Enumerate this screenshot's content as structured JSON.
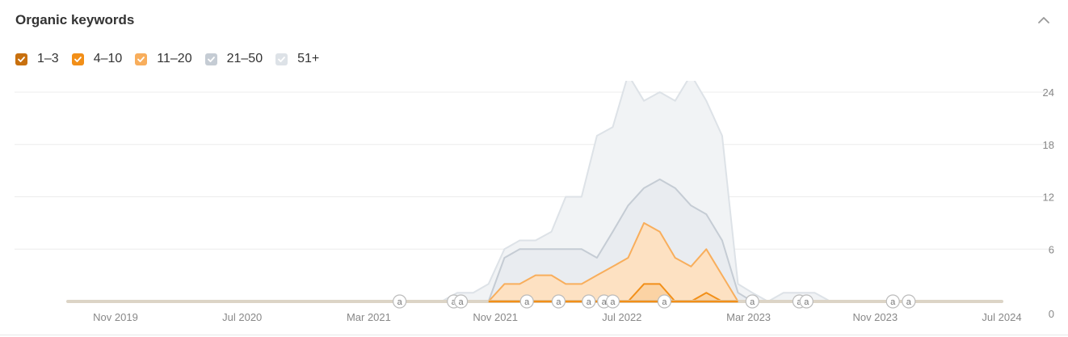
{
  "header": {
    "title": "Organic keywords",
    "collapse_icon": "chevron-up-icon"
  },
  "legend": [
    {
      "label": "1–3",
      "color": "#c8700e",
      "checked": true
    },
    {
      "label": "4–10",
      "color": "#f28f18",
      "checked": true
    },
    {
      "label": "11–20",
      "color": "#f8ae5c",
      "checked": true
    },
    {
      "label": "21–50",
      "color": "#c5ccd4",
      "checked": true
    },
    {
      "label": "51+",
      "color": "#dde2e7",
      "checked": true
    }
  ],
  "chart_data": {
    "type": "area",
    "title": "",
    "xlabel": "",
    "ylabel": "",
    "stacked": true,
    "ylim": [
      0,
      24
    ],
    "yticks": [
      0,
      6,
      12,
      18,
      24
    ],
    "y_axis_position": "right",
    "xlim": [
      "2019-07-01",
      "2024-07-01"
    ],
    "xticks": [
      "Nov 2019",
      "Jul 2020",
      "Mar 2021",
      "Nov 2021",
      "Jul 2022",
      "Mar 2023",
      "Nov 2023",
      "Jul 2024"
    ],
    "grid": true,
    "series_colors": {
      "1–3": {
        "line": "#e07b10",
        "fill": "#f5b564"
      },
      "4–10": {
        "line": "#f28f18",
        "fill": "#fbd3a4"
      },
      "11–20": {
        "line": "#f8ae5c",
        "fill": "#fde1c2"
      },
      "21–50": {
        "line": "#c5ccd4",
        "fill": "#e9ecf0"
      },
      "51+": {
        "line": "#dde2e7",
        "fill": "#f1f3f5"
      }
    },
    "x": [
      "2019-07-01",
      "2021-07-01",
      "2021-08-01",
      "2021-09-01",
      "2021-10-01",
      "2021-11-01",
      "2021-12-01",
      "2022-01-01",
      "2022-02-01",
      "2022-03-01",
      "2022-04-01",
      "2022-05-01",
      "2022-06-01",
      "2022-07-01",
      "2022-08-01",
      "2022-09-01",
      "2022-10-01",
      "2022-11-01",
      "2022-12-01",
      "2023-01-01",
      "2023-02-01",
      "2023-03-01",
      "2023-04-01",
      "2023-05-01",
      "2023-06-01",
      "2023-07-01",
      "2023-08-01",
      "2024-07-01"
    ],
    "series": [
      {
        "name": "1–3",
        "values": [
          0,
          0,
          0,
          0,
          0,
          0,
          0,
          0,
          0,
          0,
          0,
          0,
          0,
          0,
          0,
          0,
          0,
          0,
          0,
          0,
          0,
          0,
          0,
          0,
          0,
          0,
          0,
          0
        ]
      },
      {
        "name": "4–10",
        "values": [
          0,
          0,
          0,
          0,
          0,
          0,
          0,
          0,
          0,
          0,
          0,
          0,
          0,
          0,
          2,
          2,
          0,
          0,
          1,
          0,
          0,
          0,
          0,
          0,
          0,
          0,
          0,
          0
        ]
      },
      {
        "name": "11–20",
        "values": [
          0,
          0,
          0,
          0,
          0,
          2,
          2,
          3,
          3,
          2,
          2,
          3,
          4,
          5,
          7,
          6,
          5,
          4,
          5,
          3,
          0,
          0,
          0,
          0,
          0,
          0,
          0,
          0
        ]
      },
      {
        "name": "21–50",
        "values": [
          0,
          0,
          0,
          0,
          0,
          3,
          4,
          3,
          3,
          4,
          4,
          2,
          4,
          6,
          4,
          6,
          8,
          7,
          4,
          4,
          1,
          0,
          0,
          0,
          0,
          0,
          0,
          0
        ]
      },
      {
        "name": "51+",
        "values": [
          0,
          0,
          1,
          1,
          2,
          1,
          1,
          1,
          2,
          6,
          6,
          14,
          12,
          15,
          10,
          10,
          10,
          15,
          13,
          12,
          1,
          1,
          0,
          1,
          1,
          1,
          0,
          0
        ]
      }
    ],
    "annotations": [
      {
        "date": "2021-04-10",
        "label": "a"
      },
      {
        "date": "2021-07-25",
        "label": "a"
      },
      {
        "date": "2021-08-08",
        "label": "a"
      },
      {
        "date": "2021-12-15",
        "label": "a"
      },
      {
        "date": "2022-02-15",
        "label": "a"
      },
      {
        "date": "2022-04-15",
        "label": "a"
      },
      {
        "date": "2022-05-15",
        "label": "a"
      },
      {
        "date": "2022-06-01",
        "label": "a"
      },
      {
        "date": "2022-09-10",
        "label": "a"
      },
      {
        "date": "2023-03-01",
        "label": "a"
      },
      {
        "date": "2023-06-01",
        "label": "a"
      },
      {
        "date": "2023-06-15",
        "label": "a"
      },
      {
        "date": "2023-12-01",
        "label": "a"
      },
      {
        "date": "2024-01-01",
        "label": "a"
      }
    ]
  }
}
